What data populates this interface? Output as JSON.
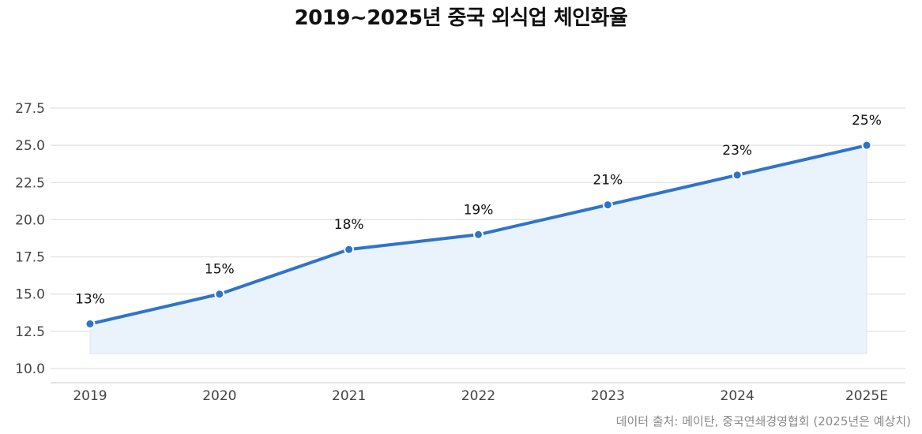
{
  "title": "2019~2025년 중국 외식업 체인화율",
  "source": "데이터 출처: 메이탄, 중국연쇄경영협회 (2025년은 예상치)",
  "colors": {
    "line": "#2f74c8",
    "area": "#eaf2fb",
    "grid": "#d9d9d9",
    "axis": "#c8c8c8"
  },
  "chart_data": {
    "type": "area",
    "categories": [
      "2019",
      "2020",
      "2021",
      "2022",
      "2023",
      "2024",
      "2025E"
    ],
    "series": [
      {
        "values": [
          13,
          15,
          18,
          19,
          21,
          23,
          25
        ]
      }
    ],
    "data_labels": [
      "13%",
      "15%",
      "18%",
      "19%",
      "21%",
      "23%",
      "25%"
    ],
    "y_ticks": [
      "10.0",
      "12.5",
      "15.0",
      "17.5",
      "20.0",
      "22.5",
      "25.0",
      "27.5"
    ],
    "ylim": [
      10,
      27.5
    ],
    "area_baseline": 11,
    "grid": true,
    "legend": "none"
  }
}
